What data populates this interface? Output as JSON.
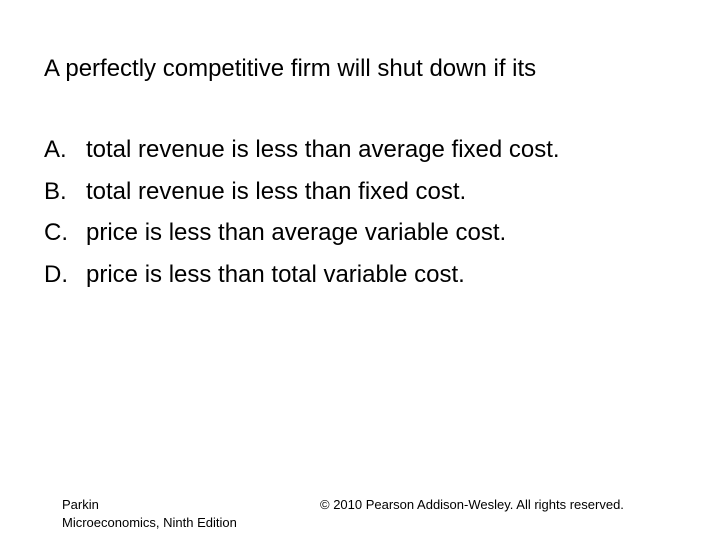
{
  "question": "A perfectly competitive firm will shut down if its",
  "options": [
    {
      "letter": "A.",
      "text": "total revenue is less than average fixed cost."
    },
    {
      "letter": "B.",
      "text": "total revenue is less than fixed cost."
    },
    {
      "letter": "C.",
      "text": "price is less than average variable cost."
    },
    {
      "letter": "D.",
      "text": "price is less than total variable cost."
    }
  ],
  "footer": {
    "author": "Parkin",
    "book": "Microeconomics, Ninth Edition",
    "copyright": "© 2010 Pearson Addison-Wesley. All rights reserved."
  }
}
